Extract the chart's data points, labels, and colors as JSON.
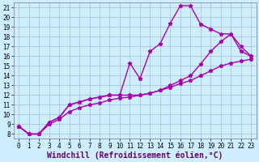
{
  "bg_color": "#cceeff",
  "grid_color": "#aabbcc",
  "line_color": "#aa00aa",
  "xlim": [
    -0.5,
    23.5
  ],
  "ylim": [
    7.5,
    21.5
  ],
  "xticks": [
    0,
    1,
    2,
    3,
    4,
    5,
    6,
    7,
    8,
    9,
    10,
    11,
    12,
    13,
    14,
    15,
    16,
    17,
    18,
    19,
    20,
    21,
    22,
    23
  ],
  "yticks": [
    8,
    9,
    10,
    11,
    12,
    13,
    14,
    15,
    16,
    17,
    18,
    19,
    20,
    21
  ],
  "line1_x": [
    0,
    1,
    2,
    3,
    4,
    5,
    6,
    7,
    8,
    9,
    10,
    11,
    12,
    13,
    14,
    15,
    16,
    17,
    18,
    19,
    20,
    21,
    22,
    23
  ],
  "line1_y": [
    8.8,
    8.0,
    8.0,
    9.2,
    9.7,
    11.0,
    11.3,
    11.6,
    11.8,
    12.0,
    12.0,
    15.3,
    13.7,
    16.5,
    17.3,
    19.4,
    21.2,
    21.2,
    19.3,
    18.8,
    18.3,
    18.3,
    17.0,
    16.0
  ],
  "line2_x": [
    0,
    1,
    2,
    3,
    4,
    5,
    6,
    7,
    8,
    9,
    10,
    11,
    12,
    13,
    14,
    15,
    16,
    17,
    18,
    19,
    20,
    21,
    22,
    23
  ],
  "line2_y": [
    8.8,
    8.0,
    8.0,
    9.2,
    9.7,
    11.0,
    11.3,
    11.6,
    11.8,
    12.0,
    12.0,
    12.0,
    12.0,
    12.2,
    12.5,
    13.0,
    13.5,
    14.0,
    15.2,
    16.5,
    17.5,
    18.3,
    16.5,
    16.0
  ],
  "line3_x": [
    0,
    1,
    2,
    3,
    4,
    5,
    6,
    7,
    8,
    9,
    10,
    11,
    12,
    13,
    14,
    15,
    16,
    17,
    18,
    19,
    20,
    21,
    22,
    23
  ],
  "line3_y": [
    8.8,
    8.0,
    8.0,
    9.0,
    9.5,
    10.3,
    10.7,
    11.0,
    11.2,
    11.5,
    11.7,
    11.8,
    12.0,
    12.2,
    12.5,
    12.8,
    13.2,
    13.5,
    14.0,
    14.5,
    15.0,
    15.3,
    15.5,
    15.7
  ],
  "xlabel": "Windchill (Refroidissement éolien,°C)",
  "tick_fontsize": 5.5,
  "xlabel_fontsize": 7,
  "linewidth": 1.0,
  "markersize": 3.5
}
